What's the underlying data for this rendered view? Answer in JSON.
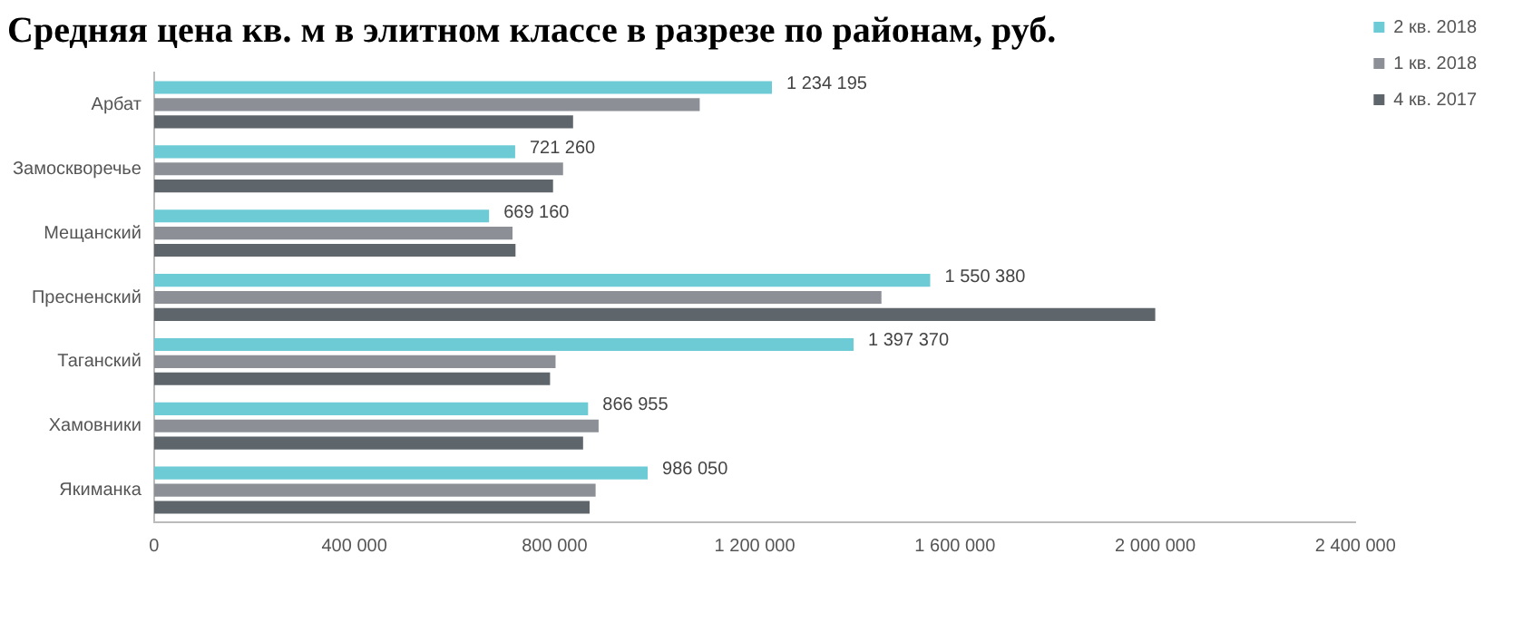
{
  "chart_data": {
    "type": "bar",
    "orientation": "horizontal",
    "title": "Средняя цена кв. м в элитном классе в разрезе по районам, руб.",
    "categories": [
      "Арбат",
      "Замоскворечье",
      "Мещанский",
      "Пресненский",
      "Таганский",
      "Хамовники",
      "Якиманка"
    ],
    "series": [
      {
        "name": "2 кв. 2018",
        "color": "#6ccbd5",
        "values": [
          1234195,
          721260,
          669160,
          1550380,
          1397370,
          866955,
          986050
        ],
        "value_labels": [
          "1 234 195",
          "721 260",
          "669 160",
          "1 550 380",
          "1 397 370",
          "866 955",
          "986 050"
        ]
      },
      {
        "name": "1 кв. 2018",
        "color": "#8c9096",
        "values": [
          1090000,
          817000,
          716000,
          1453000,
          802000,
          888000,
          882000
        ]
      },
      {
        "name": "4 кв. 2017",
        "color": "#5f666b",
        "values": [
          837000,
          797000,
          722000,
          2000000,
          791000,
          857000,
          870000
        ]
      }
    ],
    "xlim": [
      0,
      2400000
    ],
    "xticks": [
      0,
      {
        "value": 400000,
        "label": "400 000"
      },
      {
        "value": 800000,
        "label": "800 000"
      },
      {
        "value": 1200000,
        "label": "1 200 000"
      },
      {
        "value": 1600000,
        "label": "1 600 000"
      },
      {
        "value": 2000000,
        "label": "2 000 000"
      },
      {
        "value": 2400000,
        "label": "2 400 000"
      }
    ],
    "grid": false,
    "legend": "right"
  }
}
